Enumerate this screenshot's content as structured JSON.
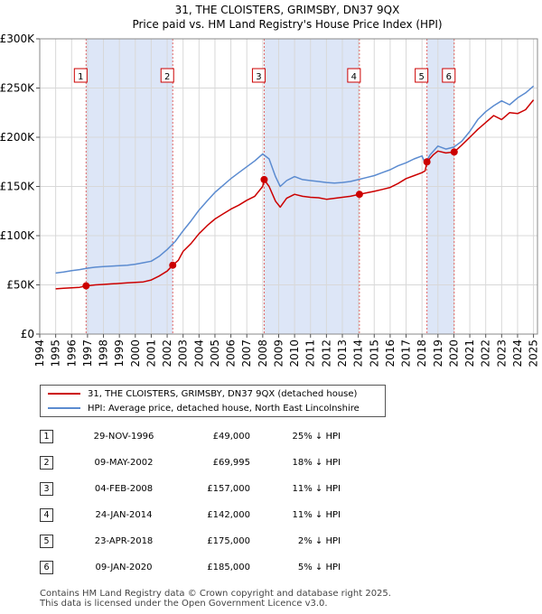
{
  "chart_data": {
    "type": "line",
    "title": "31, THE CLOISTERS, GRIMSBY, DN37 9QX",
    "subtitle": "Price paid vs. HM Land Registry's House Price Index (HPI)",
    "xlim": [
      1994,
      2025.25
    ],
    "ylim": [
      0,
      300000
    ],
    "x_ticks": [
      1994,
      1995,
      1996,
      1997,
      1998,
      1999,
      2000,
      2001,
      2002,
      2003,
      2004,
      2005,
      2006,
      2007,
      2008,
      2009,
      2010,
      2011,
      2012,
      2013,
      2014,
      2015,
      2016,
      2017,
      2018,
      2019,
      2020,
      2021,
      2022,
      2023,
      2024,
      2025
    ],
    "x_tick_labels": [
      "1994",
      "1995",
      "1996",
      "1997",
      "1998",
      "1999",
      "2000",
      "2001",
      "2002",
      "2003",
      "2004",
      "2005",
      "2006",
      "2007",
      "2008",
      "2009",
      "2010",
      "2011",
      "2012",
      "2013",
      "2014",
      "2015",
      "2016",
      "2017",
      "2018",
      "2019",
      "2020",
      "2021",
      "2022",
      "2023",
      "2024",
      "2025"
    ],
    "y_ticks": [
      0,
      50000,
      100000,
      150000,
      200000,
      250000,
      300000
    ],
    "y_tick_labels": [
      "£0",
      "£50K",
      "£100K",
      "£150K",
      "£200K",
      "£250K",
      "£300K"
    ],
    "shaded_ranges": [
      [
        1996.91,
        2002.35
      ],
      [
        2008.09,
        2014.07
      ],
      [
        2018.31,
        2020.02
      ]
    ],
    "colors": {
      "property": "#cc0000",
      "hpi": "#5b8bd0",
      "shade": "#dde6f7",
      "vline": "#e06666"
    },
    "series": [
      {
        "name": "31, THE CLOISTERS, GRIMSBY, DN37 9QX (detached house)",
        "color": "#cc0000",
        "x": [
          1995.0,
          1995.5,
          1996.0,
          1996.5,
          1996.91,
          1997.5,
          1998.0,
          1998.5,
          1999.0,
          1999.5,
          2000.0,
          2000.5,
          2001.0,
          2001.5,
          2002.0,
          2002.35,
          2002.7,
          2003.0,
          2003.5,
          2004.0,
          2004.5,
          2005.0,
          2005.5,
          2006.0,
          2006.5,
          2007.0,
          2007.5,
          2008.0,
          2008.09,
          2008.4,
          2008.8,
          2009.1,
          2009.5,
          2010.0,
          2010.5,
          2011.0,
          2011.5,
          2012.0,
          2012.5,
          2013.0,
          2013.5,
          2014.07,
          2014.5,
          2015.0,
          2015.5,
          2016.0,
          2016.5,
          2017.0,
          2017.5,
          2018.0,
          2018.2,
          2018.31,
          2018.7,
          2019.0,
          2019.5,
          2020.02,
          2020.5,
          2021.0,
          2021.5,
          2022.0,
          2022.5,
          2023.0,
          2023.5,
          2024.0,
          2024.5,
          2025.0
        ],
        "y": [
          46000,
          46500,
          47000,
          47500,
          49000,
          50000,
          50500,
          51000,
          51500,
          52000,
          52500,
          53000,
          55000,
          59000,
          64000,
          69995,
          75000,
          84000,
          92000,
          102000,
          110000,
          117000,
          122000,
          127000,
          131000,
          136000,
          140000,
          150000,
          157000,
          150000,
          135000,
          129000,
          138000,
          142000,
          140000,
          139000,
          138500,
          137000,
          138000,
          139000,
          140000,
          142000,
          143500,
          145000,
          147000,
          149000,
          153000,
          158000,
          161000,
          164000,
          166000,
          175000,
          182000,
          186000,
          184000,
          185000,
          192000,
          200000,
          208000,
          215000,
          222000,
          218000,
          225000,
          224000,
          228000,
          238000
        ]
      },
      {
        "name": "HPI: Average price, detached house, North East Lincolnshire",
        "color": "#5b8bd0",
        "x": [
          1995.0,
          1995.5,
          1996.0,
          1996.5,
          1997.0,
          1997.5,
          1998.0,
          1998.5,
          1999.0,
          1999.5,
          2000.0,
          2000.5,
          2001.0,
          2001.5,
          2002.0,
          2002.5,
          2003.0,
          2003.5,
          2004.0,
          2004.5,
          2005.0,
          2005.5,
          2006.0,
          2006.5,
          2007.0,
          2007.5,
          2008.0,
          2008.4,
          2008.8,
          2009.1,
          2009.5,
          2010.0,
          2010.5,
          2011.0,
          2011.5,
          2012.0,
          2012.5,
          2013.0,
          2013.5,
          2014.0,
          2014.5,
          2015.0,
          2015.5,
          2016.0,
          2016.5,
          2017.0,
          2017.5,
          2018.0,
          2018.2,
          2018.5,
          2019.0,
          2019.5,
          2020.0,
          2020.5,
          2021.0,
          2021.5,
          2022.0,
          2022.5,
          2023.0,
          2023.5,
          2024.0,
          2024.5,
          2025.0
        ],
        "y": [
          62000,
          63000,
          64500,
          65500,
          67000,
          68000,
          68500,
          69000,
          69500,
          70000,
          71000,
          72500,
          74000,
          79000,
          86000,
          94000,
          105000,
          115000,
          126000,
          135000,
          144000,
          151000,
          158000,
          164000,
          170000,
          176000,
          183000,
          178000,
          160000,
          150000,
          156000,
          160000,
          157000,
          156000,
          155000,
          154000,
          153500,
          154000,
          155000,
          157000,
          159000,
          161000,
          164000,
          167000,
          171000,
          174000,
          178000,
          181000,
          173000,
          182000,
          191000,
          188000,
          190000,
          196000,
          206000,
          218000,
          226000,
          232000,
          237000,
          233000,
          240000,
          245000,
          252000
        ]
      }
    ],
    "sales": [
      {
        "id": "1",
        "year": 1996.91,
        "price": 49000
      },
      {
        "id": "2",
        "year": 2002.35,
        "price": 69995
      },
      {
        "id": "3",
        "year": 2008.09,
        "price": 157000
      },
      {
        "id": "4",
        "year": 2014.07,
        "price": 142000
      },
      {
        "id": "5",
        "year": 2018.31,
        "price": 175000
      },
      {
        "id": "6",
        "year": 2020.02,
        "price": 185000
      }
    ]
  },
  "legend": {
    "property_label": "31, THE CLOISTERS, GRIMSBY, DN37 9QX (detached house)",
    "hpi_label": "HPI: Average price, detached house, North East Lincolnshire"
  },
  "table": [
    {
      "num": "1",
      "date": "29-NOV-1996",
      "price": "£49,000",
      "hpi": "25% ↓ HPI"
    },
    {
      "num": "2",
      "date": "09-MAY-2002",
      "price": "£69,995",
      "hpi": "18% ↓ HPI"
    },
    {
      "num": "3",
      "date": "04-FEB-2008",
      "price": "£157,000",
      "hpi": "11% ↓ HPI"
    },
    {
      "num": "4",
      "date": "24-JAN-2014",
      "price": "£142,000",
      "hpi": "11% ↓ HPI"
    },
    {
      "num": "5",
      "date": "23-APR-2018",
      "price": "£175,000",
      "hpi": "2% ↓ HPI"
    },
    {
      "num": "6",
      "date": "09-JAN-2020",
      "price": "£185,000",
      "hpi": "5% ↓ HPI"
    }
  ],
  "footer": {
    "line1": "Contains HM Land Registry data © Crown copyright and database right 2025.",
    "line2": "This data is licensed under the Open Government Licence v3.0."
  }
}
